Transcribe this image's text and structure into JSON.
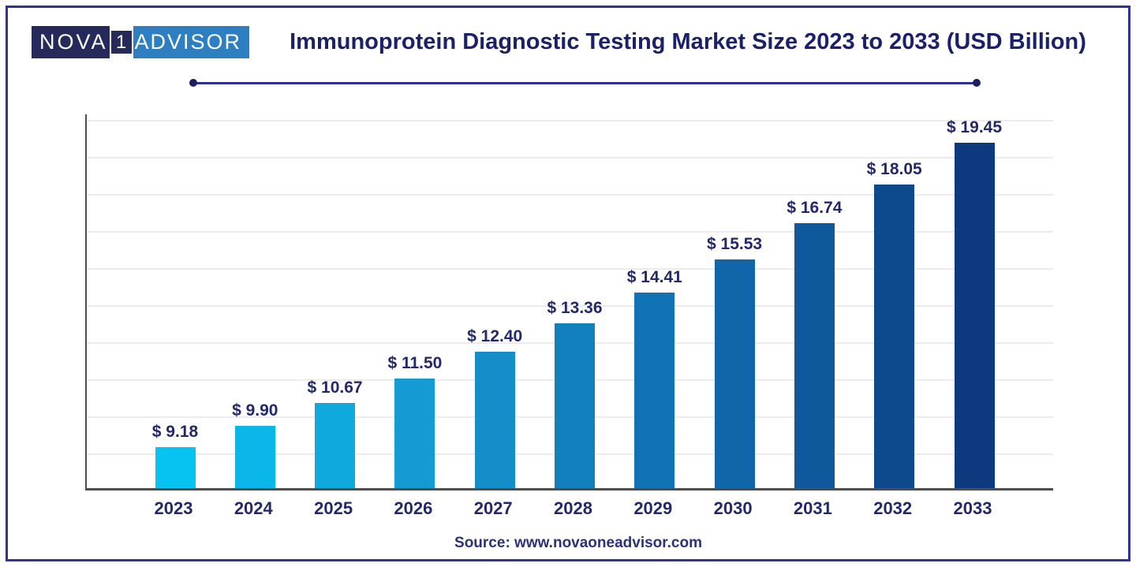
{
  "logo": {
    "nova": "NOVA",
    "one": "1",
    "advisor": "ADVISOR"
  },
  "header": {
    "title": "Immunoprotein Diagnostic Testing Market Size 2023 to 2033 (USD Billion)"
  },
  "footer": {
    "source": "Source: www.novaoneadvisor.com"
  },
  "chart_data": {
    "type": "bar",
    "title": "Immunoprotein Diagnostic Testing Market Size 2023 to 2033 (USD Billion)",
    "unit": "USD Billion",
    "categories": [
      "2023",
      "2024",
      "2025",
      "2026",
      "2027",
      "2028",
      "2029",
      "2030",
      "2031",
      "2032",
      "2033"
    ],
    "values": [
      9.18,
      9.9,
      10.67,
      11.5,
      12.4,
      13.36,
      14.41,
      15.53,
      16.74,
      18.05,
      19.45
    ],
    "value_labels": [
      "$ 9.18",
      "$ 9.90",
      "$ 10.67",
      "$ 11.50",
      "$ 12.40",
      "$ 13.36",
      "$ 14.41",
      "$ 15.53",
      "$ 16.74",
      "$ 18.05",
      "$ 19.45"
    ],
    "bar_colors": [
      "#06c3f2",
      "#0bb6e9",
      "#10a9de",
      "#149bd3",
      "#158dc8",
      "#1380be",
      "#1173b4",
      "#1066a8",
      "#0e589b",
      "#0d498c",
      "#0d3a7e"
    ],
    "ylim": [
      7.8,
      20.5
    ],
    "grid": true,
    "gridline_count": 10,
    "legend": "none",
    "source": "Source: www.novaoneadvisor.com",
    "colors": {
      "title_text": "#1b2166",
      "label_text": "#232968",
      "frame_border": "#2f3490",
      "rule_line": "#2e3192",
      "axis_line": "#4d4d4d",
      "gridline": "#ececec",
      "logo_dark": "#262a5b",
      "logo_blue": "#2e7fc2"
    }
  }
}
